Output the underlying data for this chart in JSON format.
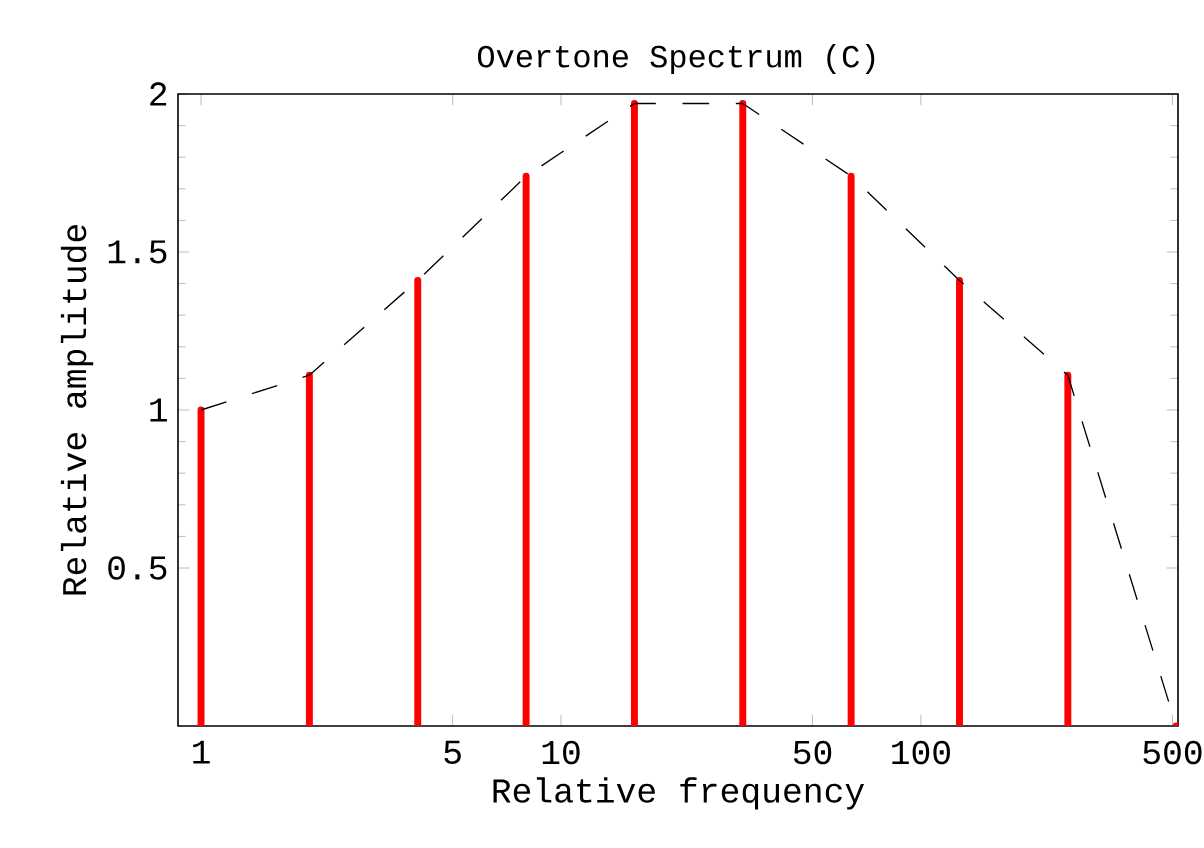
{
  "chart_data": {
    "type": "bar",
    "title": "Overtone   Spectrum   (C)",
    "xlabel": "Relative   frequency",
    "ylabel": "Relative amplitude",
    "log": "x",
    "x": [
      1,
      2,
      4,
      8,
      16,
      32,
      64,
      128,
      256,
      512
    ],
    "series": [
      {
        "color": "#ff0000",
        "values": [
          1.0,
          1.11,
          1.41,
          1.74,
          1.97,
          1.97,
          1.74,
          1.41,
          1.11,
          0
        ]
      },
      {
        "type": "line",
        "color": "#000000",
        "line_style": "dashed",
        "marker": "none",
        "values": [
          1.0,
          1.11,
          1.41,
          1.74,
          1.97,
          1.97,
          1.74,
          1.41,
          1.11,
          0
        ]
      }
    ],
    "xlim": [
      0.863,
      518
    ],
    "xticks": [
      1,
      5,
      10,
      50,
      100,
      500
    ],
    "ylim": [
      0,
      2
    ],
    "yticks": [
      0.5,
      1,
      1.5,
      2
    ],
    "grid": false
  }
}
